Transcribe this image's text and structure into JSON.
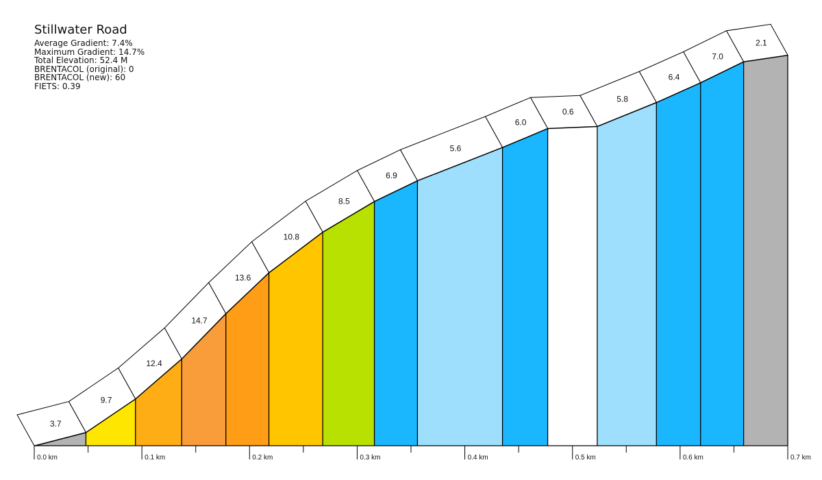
{
  "info": {
    "title": "Stillwater Road",
    "lines": [
      "Average Gradient: 7.4%",
      "Maximum Gradient: 14.7%",
      "Total Elevation: 52.4 M",
      "BRENTACOL (original): 0",
      "BRENTACOL (new): 60",
      "FIETS: 0.39"
    ]
  },
  "chart_data": {
    "type": "area",
    "title": "Stillwater Road",
    "x_unit": "km",
    "xlim": [
      0,
      0.7
    ],
    "x_ticks": [
      "0.0 km",
      "0.1 km",
      "0.2 km",
      "0.3 km",
      "0.4 km",
      "0.5 km",
      "0.6 km",
      "0.7 km"
    ],
    "segments": [
      {
        "start_km": 0.0,
        "end_km": 0.048,
        "gradient": 3.7,
        "color": "#b3b3b3"
      },
      {
        "start_km": 0.048,
        "end_km": 0.094,
        "gradient": 9.7,
        "color": "#ffe600"
      },
      {
        "start_km": 0.094,
        "end_km": 0.137,
        "gradient": 12.4,
        "color": "#ffad14"
      },
      {
        "start_km": 0.137,
        "end_km": 0.178,
        "gradient": 14.7,
        "color": "#f99d3a"
      },
      {
        "start_km": 0.178,
        "end_km": 0.218,
        "gradient": 13.6,
        "color": "#ff9e16"
      },
      {
        "start_km": 0.218,
        "end_km": 0.268,
        "gradient": 10.8,
        "color": "#ffc600"
      },
      {
        "start_km": 0.268,
        "end_km": 0.316,
        "gradient": 8.5,
        "color": "#b8e000"
      },
      {
        "start_km": 0.316,
        "end_km": 0.356,
        "gradient": 6.9,
        "color": "#1ab7ff"
      },
      {
        "start_km": 0.356,
        "end_km": 0.435,
        "gradient": 5.6,
        "color": "#9edffd"
      },
      {
        "start_km": 0.435,
        "end_km": 0.477,
        "gradient": 6.0,
        "color": "#1ab7ff"
      },
      {
        "start_km": 0.477,
        "end_km": 0.523,
        "gradient": 0.6,
        "color": "#ffffff"
      },
      {
        "start_km": 0.523,
        "end_km": 0.578,
        "gradient": 5.8,
        "color": "#9edffd"
      },
      {
        "start_km": 0.578,
        "end_km": 0.619,
        "gradient": 6.4,
        "color": "#1ab7ff"
      },
      {
        "start_km": 0.619,
        "end_km": 0.659,
        "gradient": 7.0,
        "color": "#1ab7ff"
      },
      {
        "start_km": 0.659,
        "end_km": 0.7,
        "gradient": 2.1,
        "color": "#b3b3b3"
      }
    ]
  }
}
